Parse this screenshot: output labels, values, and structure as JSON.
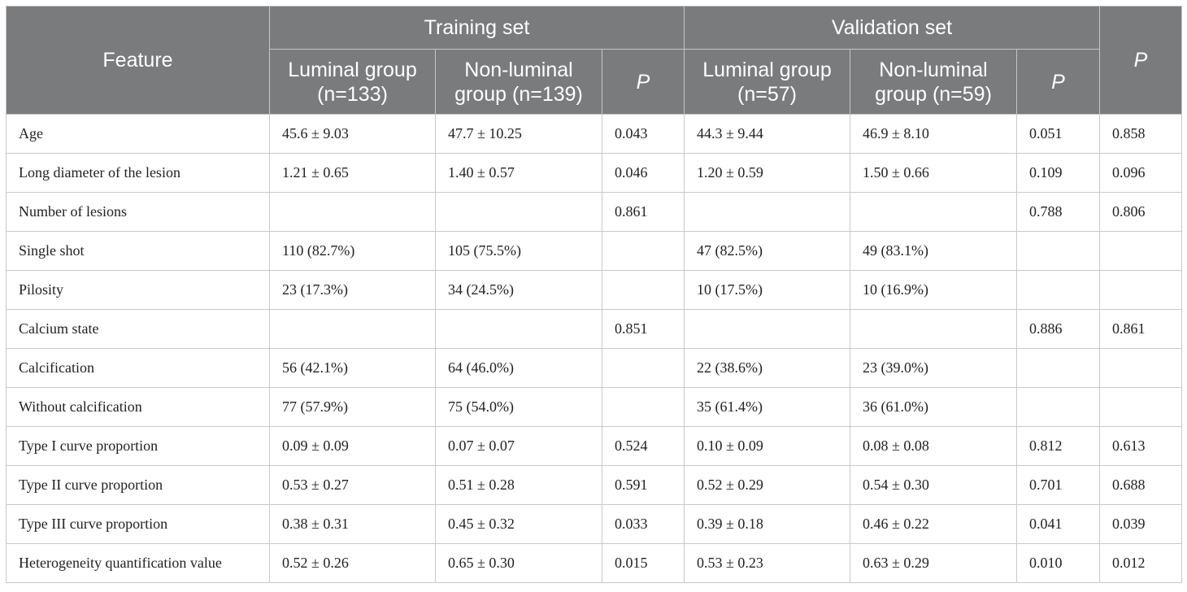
{
  "table": {
    "header": {
      "feature": "Feature",
      "training_set": "Training set",
      "validation_set": "Validation set",
      "p_overall": "P",
      "training_columns": [
        "Luminal group (n=133)",
        "Non-luminal group (n=139)",
        "P"
      ],
      "validation_columns": [
        "Luminal group (n=57)",
        "Non-luminal group (n=59)",
        "P"
      ]
    },
    "rows": [
      {
        "feature": "Age",
        "train_luminal": "45.6 ± 9.03",
        "train_nonluminal": "47.7 ± 10.25",
        "train_p": "0.043",
        "val_luminal": "44.3 ± 9.44",
        "val_nonluminal": "46.9 ± 8.10",
        "val_p": "0.051",
        "p": "0.858"
      },
      {
        "feature": "Long diameter of the lesion",
        "train_luminal": "1.21 ± 0.65",
        "train_nonluminal": "1.40 ± 0.57",
        "train_p": "0.046",
        "val_luminal": "1.20 ± 0.59",
        "val_nonluminal": "1.50 ± 0.66",
        "val_p": "0.109",
        "p": "0.096"
      },
      {
        "feature": "Number of lesions",
        "train_luminal": "",
        "train_nonluminal": "",
        "train_p": "0.861",
        "val_luminal": "",
        "val_nonluminal": "",
        "val_p": "0.788",
        "p": "0.806"
      },
      {
        "feature": "Single shot",
        "train_luminal": "110 (82.7%)",
        "train_nonluminal": "105 (75.5%)",
        "train_p": "",
        "val_luminal": "47 (82.5%)",
        "val_nonluminal": "49 (83.1%)",
        "val_p": "",
        "p": ""
      },
      {
        "feature": "Pilosity",
        "train_luminal": "23 (17.3%)",
        "train_nonluminal": "34 (24.5%)",
        "train_p": "",
        "val_luminal": "10 (17.5%)",
        "val_nonluminal": "10 (16.9%)",
        "val_p": "",
        "p": ""
      },
      {
        "feature": "Calcium state",
        "train_luminal": "",
        "train_nonluminal": "",
        "train_p": "0.851",
        "val_luminal": "",
        "val_nonluminal": "",
        "val_p": "0.886",
        "p": "0.861"
      },
      {
        "feature": "Calcification",
        "train_luminal": "56 (42.1%)",
        "train_nonluminal": "64 (46.0%)",
        "train_p": "",
        "val_luminal": "22 (38.6%)",
        "val_nonluminal": "23 (39.0%)",
        "val_p": "",
        "p": ""
      },
      {
        "feature": "Without calcification",
        "train_luminal": "77 (57.9%)",
        "train_nonluminal": "75 (54.0%)",
        "train_p": "",
        "val_luminal": "35 (61.4%)",
        "val_nonluminal": "36 (61.0%)",
        "val_p": "",
        "p": ""
      },
      {
        "feature": "Type I curve proportion",
        "train_luminal": "0.09 ± 0.09",
        "train_nonluminal": "0.07 ± 0.07",
        "train_p": "0.524",
        "val_luminal": "0.10 ± 0.09",
        "val_nonluminal": "0.08 ± 0.08",
        "val_p": "0.812",
        "p": "0.613"
      },
      {
        "feature": "Type II curve proportion",
        "train_luminal": "0.53 ± 0.27",
        "train_nonluminal": "0.51 ± 0.28",
        "train_p": "0.591",
        "val_luminal": "0.52 ± 0.29",
        "val_nonluminal": "0.54 ± 0.30",
        "val_p": "0.701",
        "p": "0.688"
      },
      {
        "feature": "Type III curve proportion",
        "train_luminal": "0.38 ± 0.31",
        "train_nonluminal": "0.45 ± 0.32",
        "train_p": "0.033",
        "val_luminal": "0.39 ± 0.18",
        "val_nonluminal": "0.46 ± 0.22",
        "val_p": "0.041",
        "p": "0.039"
      },
      {
        "feature": "Heterogeneity quantification value",
        "train_luminal": "0.52 ± 0.26",
        "train_nonluminal": "0.65 ± 0.30",
        "train_p": "0.015",
        "val_luminal": "0.53 ± 0.23",
        "val_nonluminal": "0.63 ± 0.29",
        "val_p": "0.010",
        "p": "0.012"
      }
    ]
  }
}
